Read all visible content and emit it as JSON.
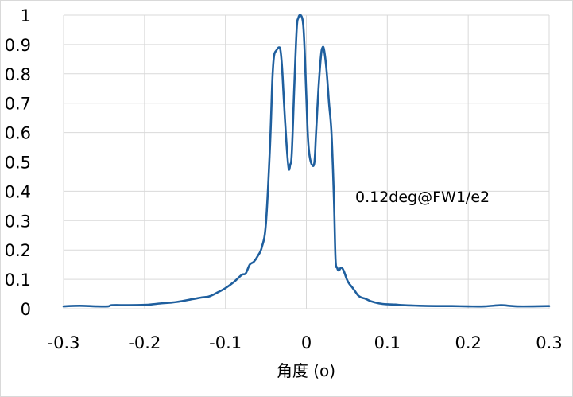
{
  "chart_data": {
    "type": "line",
    "title": "",
    "xlabel": "角度 (o)",
    "ylabel": "",
    "xlim": [
      -0.3,
      0.3
    ],
    "ylim": [
      0,
      1
    ],
    "x_ticks": [
      "-0.3",
      "-0.2",
      "-0.1",
      "0",
      "0.1",
      "0.2",
      "0.3"
    ],
    "y_ticks": [
      "0",
      "0.1",
      "0.2",
      "0.3",
      "0.4",
      "0.5",
      "0.6",
      "0.7",
      "0.8",
      "0.9",
      "1"
    ],
    "grid": true,
    "legend": "none",
    "line_color": "#1f5f9e",
    "annotation": "0.12deg@FW1/e2",
    "series": [
      {
        "x": [
          -0.3,
          -0.28,
          -0.26,
          -0.245,
          -0.24,
          -0.22,
          -0.2,
          -0.19,
          -0.18,
          -0.16,
          -0.14,
          -0.13,
          -0.12,
          -0.11,
          -0.1,
          -0.09,
          -0.08,
          -0.075,
          -0.07,
          -0.065,
          -0.06,
          -0.055,
          -0.05,
          -0.045,
          -0.042,
          -0.04,
          -0.037,
          -0.034,
          -0.032,
          -0.03,
          -0.028,
          -0.025,
          -0.022,
          -0.02,
          -0.018,
          -0.015,
          -0.012,
          -0.01,
          -0.007,
          -0.004,
          -0.002,
          0,
          0.002,
          0.004,
          0.007,
          0.01,
          0.012,
          0.015,
          0.018,
          0.02,
          0.022,
          0.025,
          0.028,
          0.031,
          0.034,
          0.036,
          0.038,
          0.04,
          0.043,
          0.046,
          0.05,
          0.053,
          0.056,
          0.06,
          0.064,
          0.068,
          0.072,
          0.076,
          0.08,
          0.09,
          0.1,
          0.11,
          0.12,
          0.14,
          0.16,
          0.18,
          0.2,
          0.22,
          0.24,
          0.25,
          0.26,
          0.28,
          0.3
        ],
        "y": [
          0.008,
          0.01,
          0.008,
          0.008,
          0.012,
          0.012,
          0.013,
          0.015,
          0.018,
          0.023,
          0.033,
          0.038,
          0.042,
          0.055,
          0.07,
          0.09,
          0.115,
          0.12,
          0.15,
          0.16,
          0.18,
          0.21,
          0.29,
          0.55,
          0.78,
          0.86,
          0.88,
          0.89,
          0.88,
          0.82,
          0.72,
          0.58,
          0.48,
          0.49,
          0.53,
          0.75,
          0.95,
          0.99,
          1.0,
          0.97,
          0.87,
          0.72,
          0.58,
          0.52,
          0.49,
          0.5,
          0.6,
          0.75,
          0.86,
          0.89,
          0.88,
          0.81,
          0.7,
          0.6,
          0.38,
          0.17,
          0.14,
          0.13,
          0.14,
          0.13,
          0.1,
          0.085,
          0.075,
          0.06,
          0.045,
          0.038,
          0.035,
          0.03,
          0.025,
          0.018,
          0.015,
          0.014,
          0.012,
          0.01,
          0.009,
          0.009,
          0.008,
          0.008,
          0.012,
          0.01,
          0.008,
          0.008,
          0.009
        ]
      }
    ]
  }
}
